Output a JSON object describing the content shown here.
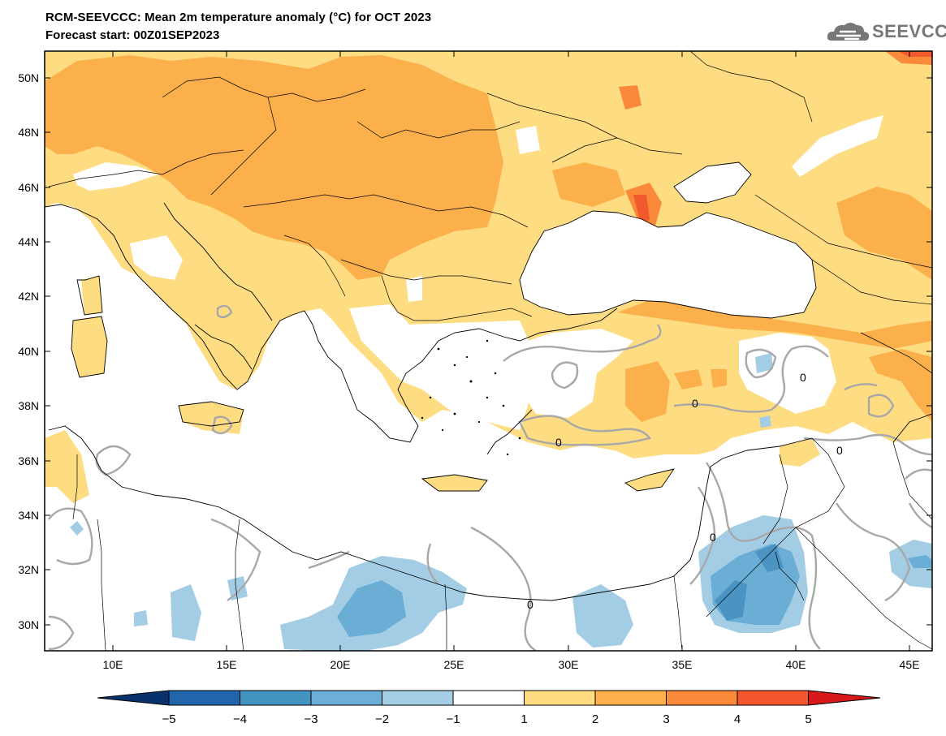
{
  "header": {
    "title": "RCM-SEEVCCC: Mean 2m temperature anomaly (°C) for OCT 2023",
    "subtitle": "Forecast start: 00Z01SEP2023",
    "logo_text": "SEEVCCC"
  },
  "map": {
    "lat_ticks": [
      "50N",
      "48N",
      "46N",
      "44N",
      "42N",
      "40N",
      "38N",
      "36N",
      "34N",
      "32N",
      "30N"
    ],
    "lon_ticks": [
      "10E",
      "15E",
      "20E",
      "25E",
      "30E",
      "35E",
      "40E",
      "45E"
    ],
    "contour_label": "0"
  },
  "colorbar": {
    "levels": [
      "−5",
      "−4",
      "−3",
      "−2",
      "−1",
      "1",
      "2",
      "3",
      "4",
      "5"
    ],
    "colors": [
      "#08306b",
      "#2166ac",
      "#4393c3",
      "#6baed6",
      "#a6cfe6",
      "#ffffff",
      "#fedc7f",
      "#fdb04c",
      "#fb8a3b",
      "#f4572b",
      "#d7191c"
    ]
  },
  "colors": {
    "light_orange": "#fddc82",
    "orange": "#fbb04c",
    "dark_orange": "#fa8a3a",
    "red": "#f25a2d",
    "light_blue": "#a3cde4",
    "blue": "#6aaed6",
    "dark_blue": "#4a93c3"
  }
}
